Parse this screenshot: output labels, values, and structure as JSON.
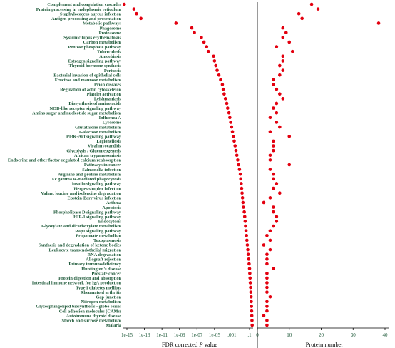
{
  "chart_data": [
    {
      "type": "scatter",
      "panel": "fdr",
      "xscale": "log10",
      "xlim": [
        -15.5,
        0
      ],
      "xlabel_plain": "FDR corrected ",
      "xlabel_italic": "P",
      "xlabel_rest": " value",
      "xticks": [
        "1e-15",
        "1e-13",
        "1e-11",
        "1e-09",
        "1e-07",
        "1e-05",
        ".001",
        ".1"
      ],
      "categories": [
        "Complement and coagulation cascades",
        "Protein processing in endoplasmic reticulum",
        "Staphylococcus aureus infection",
        "Antigen processing and presentation",
        "Metabolic pathways",
        "Phagosome",
        "Proteasome",
        "Systemic lupus erythematosus",
        "Carbon metabolism",
        "Pentose phosphate pathway",
        "Tuberculosis",
        "Amoebiasis",
        "Estrogen signaling pathway",
        "Thyroid hormone synthesis",
        "Pertussis",
        "Bacterial invasion of epithelial cells",
        "Fructose and mannose metabolism",
        "Prion diseases",
        "Regulation of actin cytoskeleton",
        "Platelet activation",
        "Leishmaniasis",
        "Biosynthesis of amino acids",
        "NOD-like receptor signaling pathway",
        "Amino sugar and nucleotide sugar metabolism",
        "Influenza A",
        "Lysosome",
        "Glutathione metabolism",
        "Galactose metabolism",
        "PI3K-Akt signaling pathway",
        "Legionellosis",
        "Viral myocarditis",
        "Glycolysis / Gluconeogenesis",
        "African trypanosomiasis",
        "Endocrine and other factor-regulated calcium reabsorption",
        "Pathways in cancer",
        "Salmonella infection",
        "Arginine and proline metabolism",
        "Fc gamma R-mediated phagocytosis",
        "Insulin signaling pathway",
        "Herpes simplex infection",
        "Valine, leucine and isoleucine degradation",
        "Epstein-Barr virus infection",
        "Asthma",
        "Apoptosis",
        "Phospholipase D signaling pathway",
        "HIF-1 signaling pathway",
        "Endocytosis",
        "Glyoxylate and dicarboxylate metabolism",
        "Rap1 signaling pathway",
        "Propanoate metabolism",
        "Toxoplasmosis",
        "Synthesis and degradation of ketone bodies",
        "Leukocyte transendothelial migration",
        "RNA degradation",
        "Allograft rejection",
        "Primary immunodeficiency",
        "Huntington's disease",
        "Prostate cancer",
        "Protein digestion and absorption",
        "Intestinal immune network for IgA production",
        "Type I diabetes mellitus",
        "Rheumatoid arthritis",
        "Gap junction",
        "Nitrogen metabolism",
        "Glycosphingolipid biosynthesis - globo series",
        "Cell adhesion molecules (CAMs)",
        "Autoimmune thyroid disease",
        "Starch and sucrose metabolism",
        "Malaria"
      ],
      "x": [
        -15.3,
        -14.2,
        -13.9,
        -13.4,
        -9.4,
        -7.6,
        -7.3,
        -6.5,
        -6.2,
        -5.9,
        -5.7,
        -5.1,
        -5.0,
        -4.85,
        -4.7,
        -4.5,
        -4.3,
        -4.1,
        -4.0,
        -3.9,
        -3.75,
        -3.6,
        -3.5,
        -3.35,
        -3.25,
        -3.15,
        -3.05,
        -2.95,
        -2.85,
        -2.75,
        -2.65,
        -2.55,
        -2.45,
        -2.35,
        -2.25,
        -2.15,
        -2.05,
        -2.0,
        -1.95,
        -1.9,
        -1.85,
        -1.8,
        -1.75,
        -1.7,
        -1.6,
        -1.55,
        -1.5,
        -1.45,
        -1.4,
        -1.35,
        -1.3,
        -1.25,
        -1.2,
        -1.15,
        -1.1,
        -1.05,
        -1.0,
        -0.97,
        -0.94,
        -0.91,
        -0.88,
        -0.85,
        -0.82,
        -0.8,
        -0.78,
        -0.76,
        -0.74,
        -0.72,
        -0.7
      ]
    },
    {
      "type": "scatter",
      "panel": "protein",
      "xlim": [
        0,
        40
      ],
      "xlabel": "Protein number",
      "xticks": [
        "0",
        "10",
        "20",
        "30",
        "40"
      ],
      "values": [
        17,
        19,
        13,
        14,
        38,
        8,
        9,
        8,
        10,
        6,
        11,
        8,
        8,
        7,
        8,
        7,
        5,
        5,
        6,
        7,
        8,
        6,
        5,
        6,
        4,
        6,
        7,
        4,
        10,
        5,
        5,
        5,
        4,
        4,
        10,
        4,
        5,
        5,
        6,
        5,
        7,
        4,
        2,
        5,
        5,
        6,
        6,
        5,
        4,
        3,
        4,
        2,
        4,
        3,
        3,
        3,
        5,
        3,
        3,
        3,
        3,
        3,
        4,
        3,
        3,
        3,
        2,
        3,
        3
      ]
    }
  ]
}
